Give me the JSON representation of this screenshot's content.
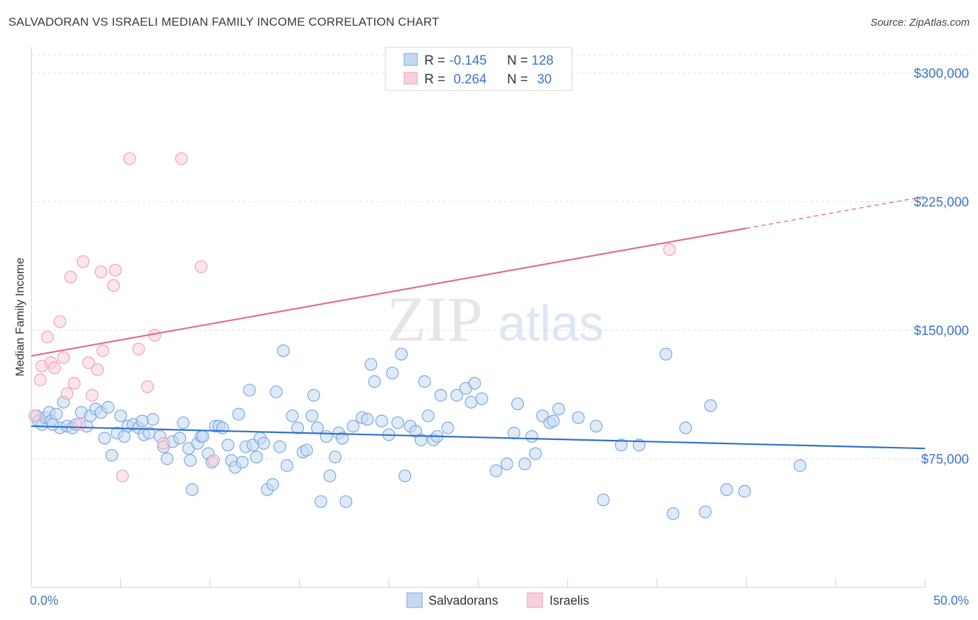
{
  "header": {
    "title": "SALVADORAN VS ISRAELI MEDIAN FAMILY INCOME CORRELATION CHART",
    "source": "Source: ZipAtlas.com"
  },
  "watermark": {
    "zip": "ZIP",
    "atlas": "atlas"
  },
  "chart_data": {
    "type": "scatter",
    "title": "SALVADORAN VS ISRAELI MEDIAN FAMILY INCOME CORRELATION CHART",
    "ylabel": "Median Family Income",
    "xlabel": "",
    "xlim": [
      0,
      50
    ],
    "ylim": [
      0,
      315000
    ],
    "x_tick_labels": [
      "0.0%",
      "50.0%"
    ],
    "y_ticks": [
      {
        "value": 75000,
        "label": "$75,000"
      },
      {
        "value": 150000,
        "label": "$150,000"
      },
      {
        "value": 225000,
        "label": "$225,000"
      },
      {
        "value": 300000,
        "label": "$300,000"
      }
    ],
    "grid": true,
    "legend": {
      "position": "top-center",
      "rows": [
        {
          "r_label": "R =",
          "r_value": "-0.145",
          "n_label": "N =",
          "n_value": "128"
        },
        {
          "r_label": "R =",
          "r_value": "0.264",
          "n_label": "N =",
          "n_value": "30"
        }
      ]
    },
    "series": [
      {
        "name": "Salvadorans",
        "color": "#7aa8e0",
        "line_color": "#2f6fcc",
        "r": -0.145,
        "n": 128,
        "trend": {
          "x0": 0,
          "y0": 94000,
          "x1": 50,
          "y1": 81000
        },
        "points": [
          [
            0.3,
            100000
          ],
          [
            0.4,
            97000
          ],
          [
            0.6,
            95000
          ],
          [
            0.8,
            99000
          ],
          [
            1.0,
            102000
          ],
          [
            1.1,
            97000
          ],
          [
            1.4,
            101000
          ],
          [
            1.6,
            93000
          ],
          [
            1.8,
            108000
          ],
          [
            2.0,
            94000
          ],
          [
            2.3,
            93000
          ],
          [
            2.5,
            95000
          ],
          [
            2.8,
            102000
          ],
          [
            3.1,
            94000
          ],
          [
            3.3,
            100000
          ],
          [
            3.6,
            104000
          ],
          [
            3.9,
            102000
          ],
          [
            4.1,
            87000
          ],
          [
            4.3,
            105000
          ],
          [
            4.5,
            77000
          ],
          [
            4.8,
            90000
          ],
          [
            5.0,
            100000
          ],
          [
            5.2,
            88000
          ],
          [
            5.4,
            94000
          ],
          [
            5.7,
            95000
          ],
          [
            6.0,
            93000
          ],
          [
            6.3,
            89000
          ],
          [
            6.6,
            90000
          ],
          [
            6.8,
            98000
          ],
          [
            7.2,
            88000
          ],
          [
            7.4,
            82000
          ],
          [
            7.6,
            75000
          ],
          [
            7.9,
            85000
          ],
          [
            8.3,
            87000
          ],
          [
            8.5,
            96000
          ],
          [
            8.8,
            81000
          ],
          [
            8.9,
            74000
          ],
          [
            9.0,
            57000
          ],
          [
            9.3,
            84000
          ],
          [
            9.5,
            88000
          ],
          [
            9.6,
            88000
          ],
          [
            9.9,
            78000
          ],
          [
            10.1,
            73000
          ],
          [
            10.3,
            94000
          ],
          [
            10.5,
            94000
          ],
          [
            10.7,
            93000
          ],
          [
            11.0,
            83000
          ],
          [
            11.2,
            74000
          ],
          [
            11.4,
            70000
          ],
          [
            11.6,
            101000
          ],
          [
            11.8,
            73000
          ],
          [
            12.0,
            82000
          ],
          [
            12.2,
            115000
          ],
          [
            12.4,
            83000
          ],
          [
            12.6,
            76000
          ],
          [
            12.8,
            87000
          ],
          [
            13.0,
            84000
          ],
          [
            13.2,
            57000
          ],
          [
            13.5,
            60000
          ],
          [
            13.7,
            114000
          ],
          [
            13.9,
            82000
          ],
          [
            14.1,
            138000
          ],
          [
            14.3,
            71000
          ],
          [
            14.6,
            100000
          ],
          [
            14.9,
            93000
          ],
          [
            15.2,
            79000
          ],
          [
            15.4,
            80000
          ],
          [
            15.8,
            112000
          ],
          [
            16.0,
            93000
          ],
          [
            16.2,
            50000
          ],
          [
            16.5,
            88000
          ],
          [
            16.7,
            65000
          ],
          [
            17.0,
            76000
          ],
          [
            17.2,
            90000
          ],
          [
            17.4,
            87000
          ],
          [
            17.6,
            50000
          ],
          [
            18.0,
            94000
          ],
          [
            18.5,
            99000
          ],
          [
            18.8,
            98000
          ],
          [
            19.0,
            130000
          ],
          [
            19.2,
            120000
          ],
          [
            19.6,
            97000
          ],
          [
            20.0,
            89000
          ],
          [
            20.2,
            125000
          ],
          [
            20.5,
            96000
          ],
          [
            20.7,
            136000
          ],
          [
            20.9,
            65000
          ],
          [
            21.2,
            94000
          ],
          [
            21.5,
            91000
          ],
          [
            21.8,
            86000
          ],
          [
            22.0,
            120000
          ],
          [
            22.2,
            100000
          ],
          [
            22.5,
            86000
          ],
          [
            22.7,
            88000
          ],
          [
            22.9,
            112000
          ],
          [
            23.3,
            93000
          ],
          [
            23.8,
            112000
          ],
          [
            24.3,
            116000
          ],
          [
            24.6,
            108000
          ],
          [
            24.8,
            119000
          ],
          [
            25.2,
            110000
          ],
          [
            26.0,
            68000
          ],
          [
            26.6,
            72000
          ],
          [
            27.0,
            90000
          ],
          [
            27.2,
            107000
          ],
          [
            27.6,
            72000
          ],
          [
            28.0,
            88000
          ],
          [
            28.2,
            78000
          ],
          [
            28.6,
            100000
          ],
          [
            29.0,
            96000
          ],
          [
            29.5,
            104000
          ],
          [
            29.2,
            97000
          ],
          [
            30.6,
            99000
          ],
          [
            31.6,
            94000
          ],
          [
            32.0,
            51000
          ],
          [
            33.0,
            83000
          ],
          [
            34.0,
            83000
          ],
          [
            35.5,
            136000
          ],
          [
            35.9,
            43000
          ],
          [
            36.6,
            93000
          ],
          [
            37.7,
            44000
          ],
          [
            38.0,
            106000
          ],
          [
            38.9,
            57000
          ],
          [
            39.9,
            56000
          ],
          [
            43.0,
            71000
          ],
          [
            1.2,
            95000
          ],
          [
            6.2,
            97000
          ],
          [
            15.7,
            100000
          ]
        ]
      },
      {
        "name": "Israelis",
        "color": "#f0a0bc",
        "line_color": "#e06b96",
        "r": 0.264,
        "n": 30,
        "trend": {
          "x0": 0,
          "y0": 135000,
          "x1": 50,
          "y1": 228000,
          "solid_until_x": 40
        },
        "points": [
          [
            0.2,
            100000
          ],
          [
            0.5,
            121000
          ],
          [
            0.6,
            129000
          ],
          [
            0.9,
            146000
          ],
          [
            1.1,
            131000
          ],
          [
            1.3,
            128000
          ],
          [
            1.6,
            155000
          ],
          [
            1.8,
            134000
          ],
          [
            2.0,
            113000
          ],
          [
            2.2,
            181000
          ],
          [
            2.4,
            119000
          ],
          [
            2.7,
            95000
          ],
          [
            2.9,
            190000
          ],
          [
            3.2,
            131000
          ],
          [
            3.4,
            112000
          ],
          [
            3.7,
            127000
          ],
          [
            3.9,
            184000
          ],
          [
            4.0,
            138000
          ],
          [
            4.6,
            176000
          ],
          [
            4.7,
            185000
          ],
          [
            5.1,
            65000
          ],
          [
            5.5,
            250000
          ],
          [
            6.0,
            139000
          ],
          [
            6.5,
            117000
          ],
          [
            6.9,
            147000
          ],
          [
            7.4,
            84000
          ],
          [
            8.4,
            250000
          ],
          [
            9.5,
            187000
          ],
          [
            10.2,
            74000
          ],
          [
            35.7,
            197000
          ]
        ]
      }
    ]
  },
  "bottom_legend": {
    "items": [
      {
        "label": "Salvadorans"
      },
      {
        "label": "Israelis"
      }
    ]
  }
}
